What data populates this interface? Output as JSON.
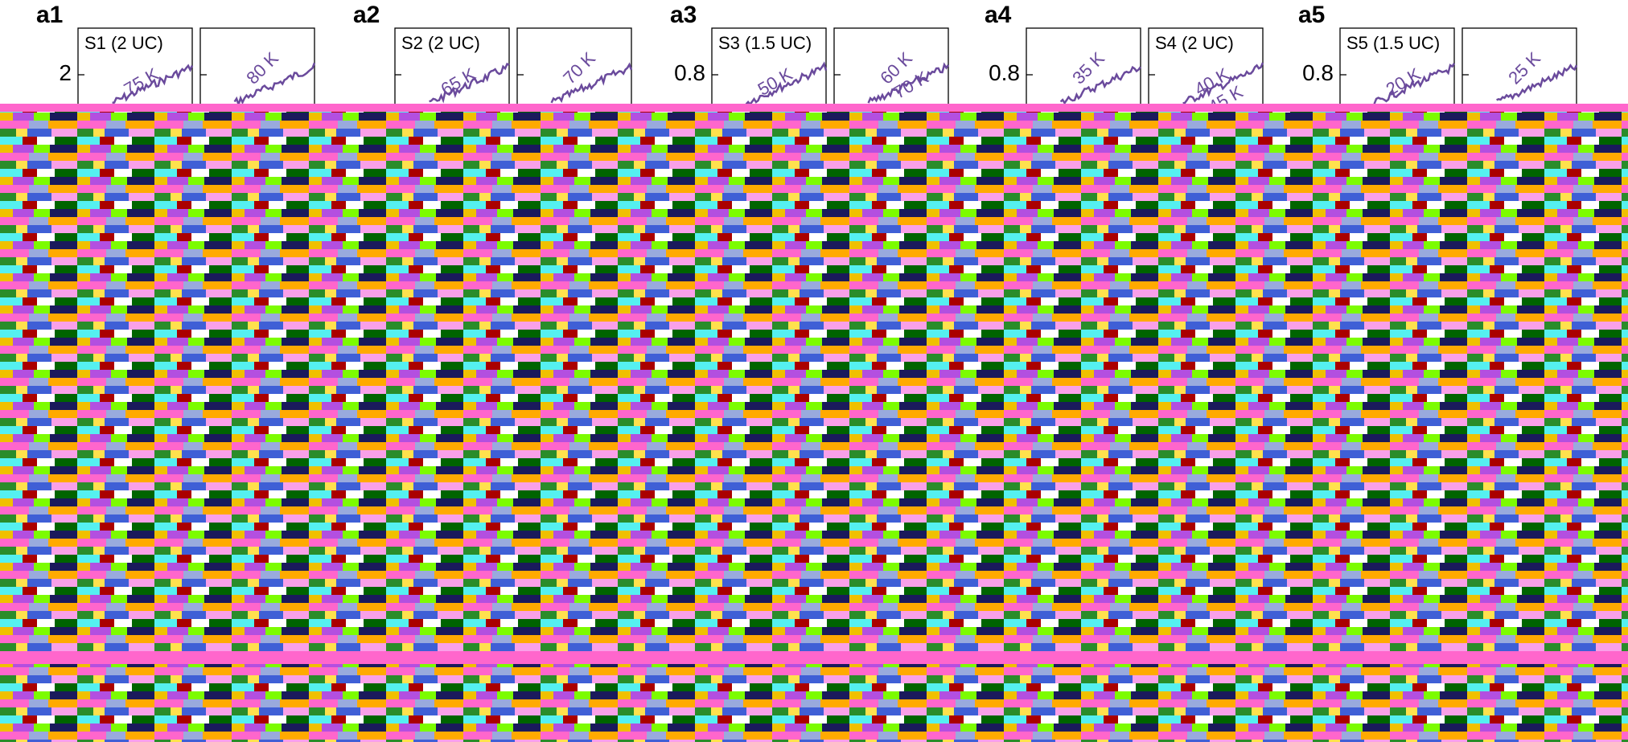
{
  "panels": [
    {
      "label": "a1",
      "ytick": "2",
      "boxes": [
        {
          "title": "S1 (2 UC)",
          "temps": [
            "75 K"
          ]
        },
        {
          "temps": [
            "80 K"
          ]
        }
      ]
    },
    {
      "label": "a2",
      "boxes": [
        {
          "title": "S2 (2 UC)",
          "temps": [
            "65 K"
          ]
        },
        {
          "temps": [
            "70 K"
          ]
        }
      ]
    },
    {
      "label": "a3",
      "ytick": "0.8",
      "boxes": [
        {
          "title": "S3 (1.5 UC)",
          "temps": [
            "50 K"
          ]
        },
        {
          "temps": [
            "60 K",
            "70 K"
          ]
        }
      ]
    },
    {
      "label": "a4",
      "ytick": "0.8",
      "boxes": [
        {
          "temps": [
            "35 K"
          ]
        },
        {
          "title": "S4 (2 UC)",
          "temps": [
            "40 K",
            "45 K"
          ]
        }
      ]
    },
    {
      "label": "a5",
      "ytick": "0.8",
      "boxes": [
        {
          "title": "S5 (1.5 UC)",
          "temps": [
            "20 K"
          ]
        },
        {
          "temps": [
            "25 K"
          ]
        }
      ]
    }
  ]
}
